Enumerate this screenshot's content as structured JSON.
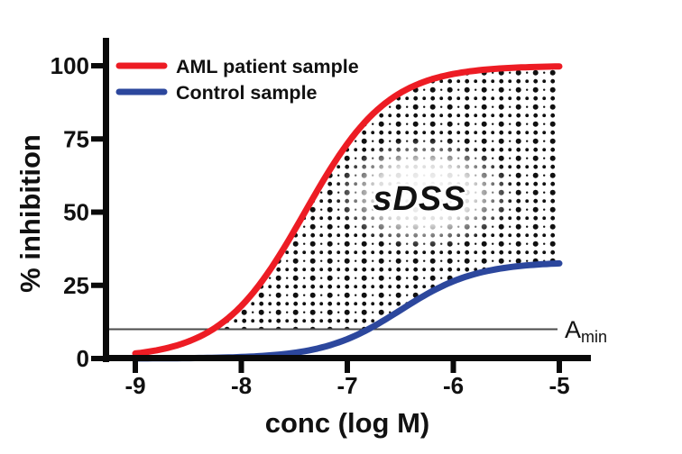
{
  "figure": {
    "background": "#ffffff"
  },
  "chart_data": {
    "type": "line",
    "title": "",
    "xlabel": "conc (log M)",
    "ylabel": "% inhibition",
    "xlim": [
      -9,
      -5
    ],
    "ylim": [
      0,
      100
    ],
    "x_ticks": [
      -9,
      -8,
      -7,
      -6,
      -5
    ],
    "y_ticks": [
      0,
      25,
      50,
      75,
      100
    ],
    "grid": false,
    "legend_position": "top-left-inside",
    "series": [
      {
        "name": "AML patient sample",
        "color": "#ED1C24",
        "model": "logistic",
        "params": {
          "bottom": 0,
          "top": 100,
          "log_ec50": -7.4,
          "hill": 1.1
        },
        "x": [
          -9,
          -8.5,
          -8,
          -7.5,
          -7,
          -6.5,
          -6,
          -5.5,
          -5
        ],
        "y": [
          1.7,
          5.8,
          18.0,
          43.7,
          73.4,
          90.7,
          97.2,
          99.2,
          99.8
        ]
      },
      {
        "name": "Control sample",
        "color": "#2C479D",
        "model": "logistic",
        "params": {
          "bottom": 0,
          "top": 33,
          "log_ec50": -6.5,
          "hill": 1.2
        },
        "x": [
          -9,
          -8.5,
          -8,
          -7.5,
          -7,
          -6.5,
          -6,
          -5.5,
          -5
        ],
        "y": [
          0.0,
          0.1,
          0.5,
          2.0,
          6.6,
          16.5,
          26.4,
          31.0,
          32.5
        ]
      }
    ],
    "reference_line": {
      "label_main": "A",
      "label_sub": "min",
      "value": 10,
      "color": "#4b4b4b"
    },
    "region": {
      "label": "sDSS",
      "pattern": "halftone-dots",
      "bounds": "between AML curve (top) and max(control curve, Amin line) (bottom), from Amin crossing to -5"
    }
  }
}
